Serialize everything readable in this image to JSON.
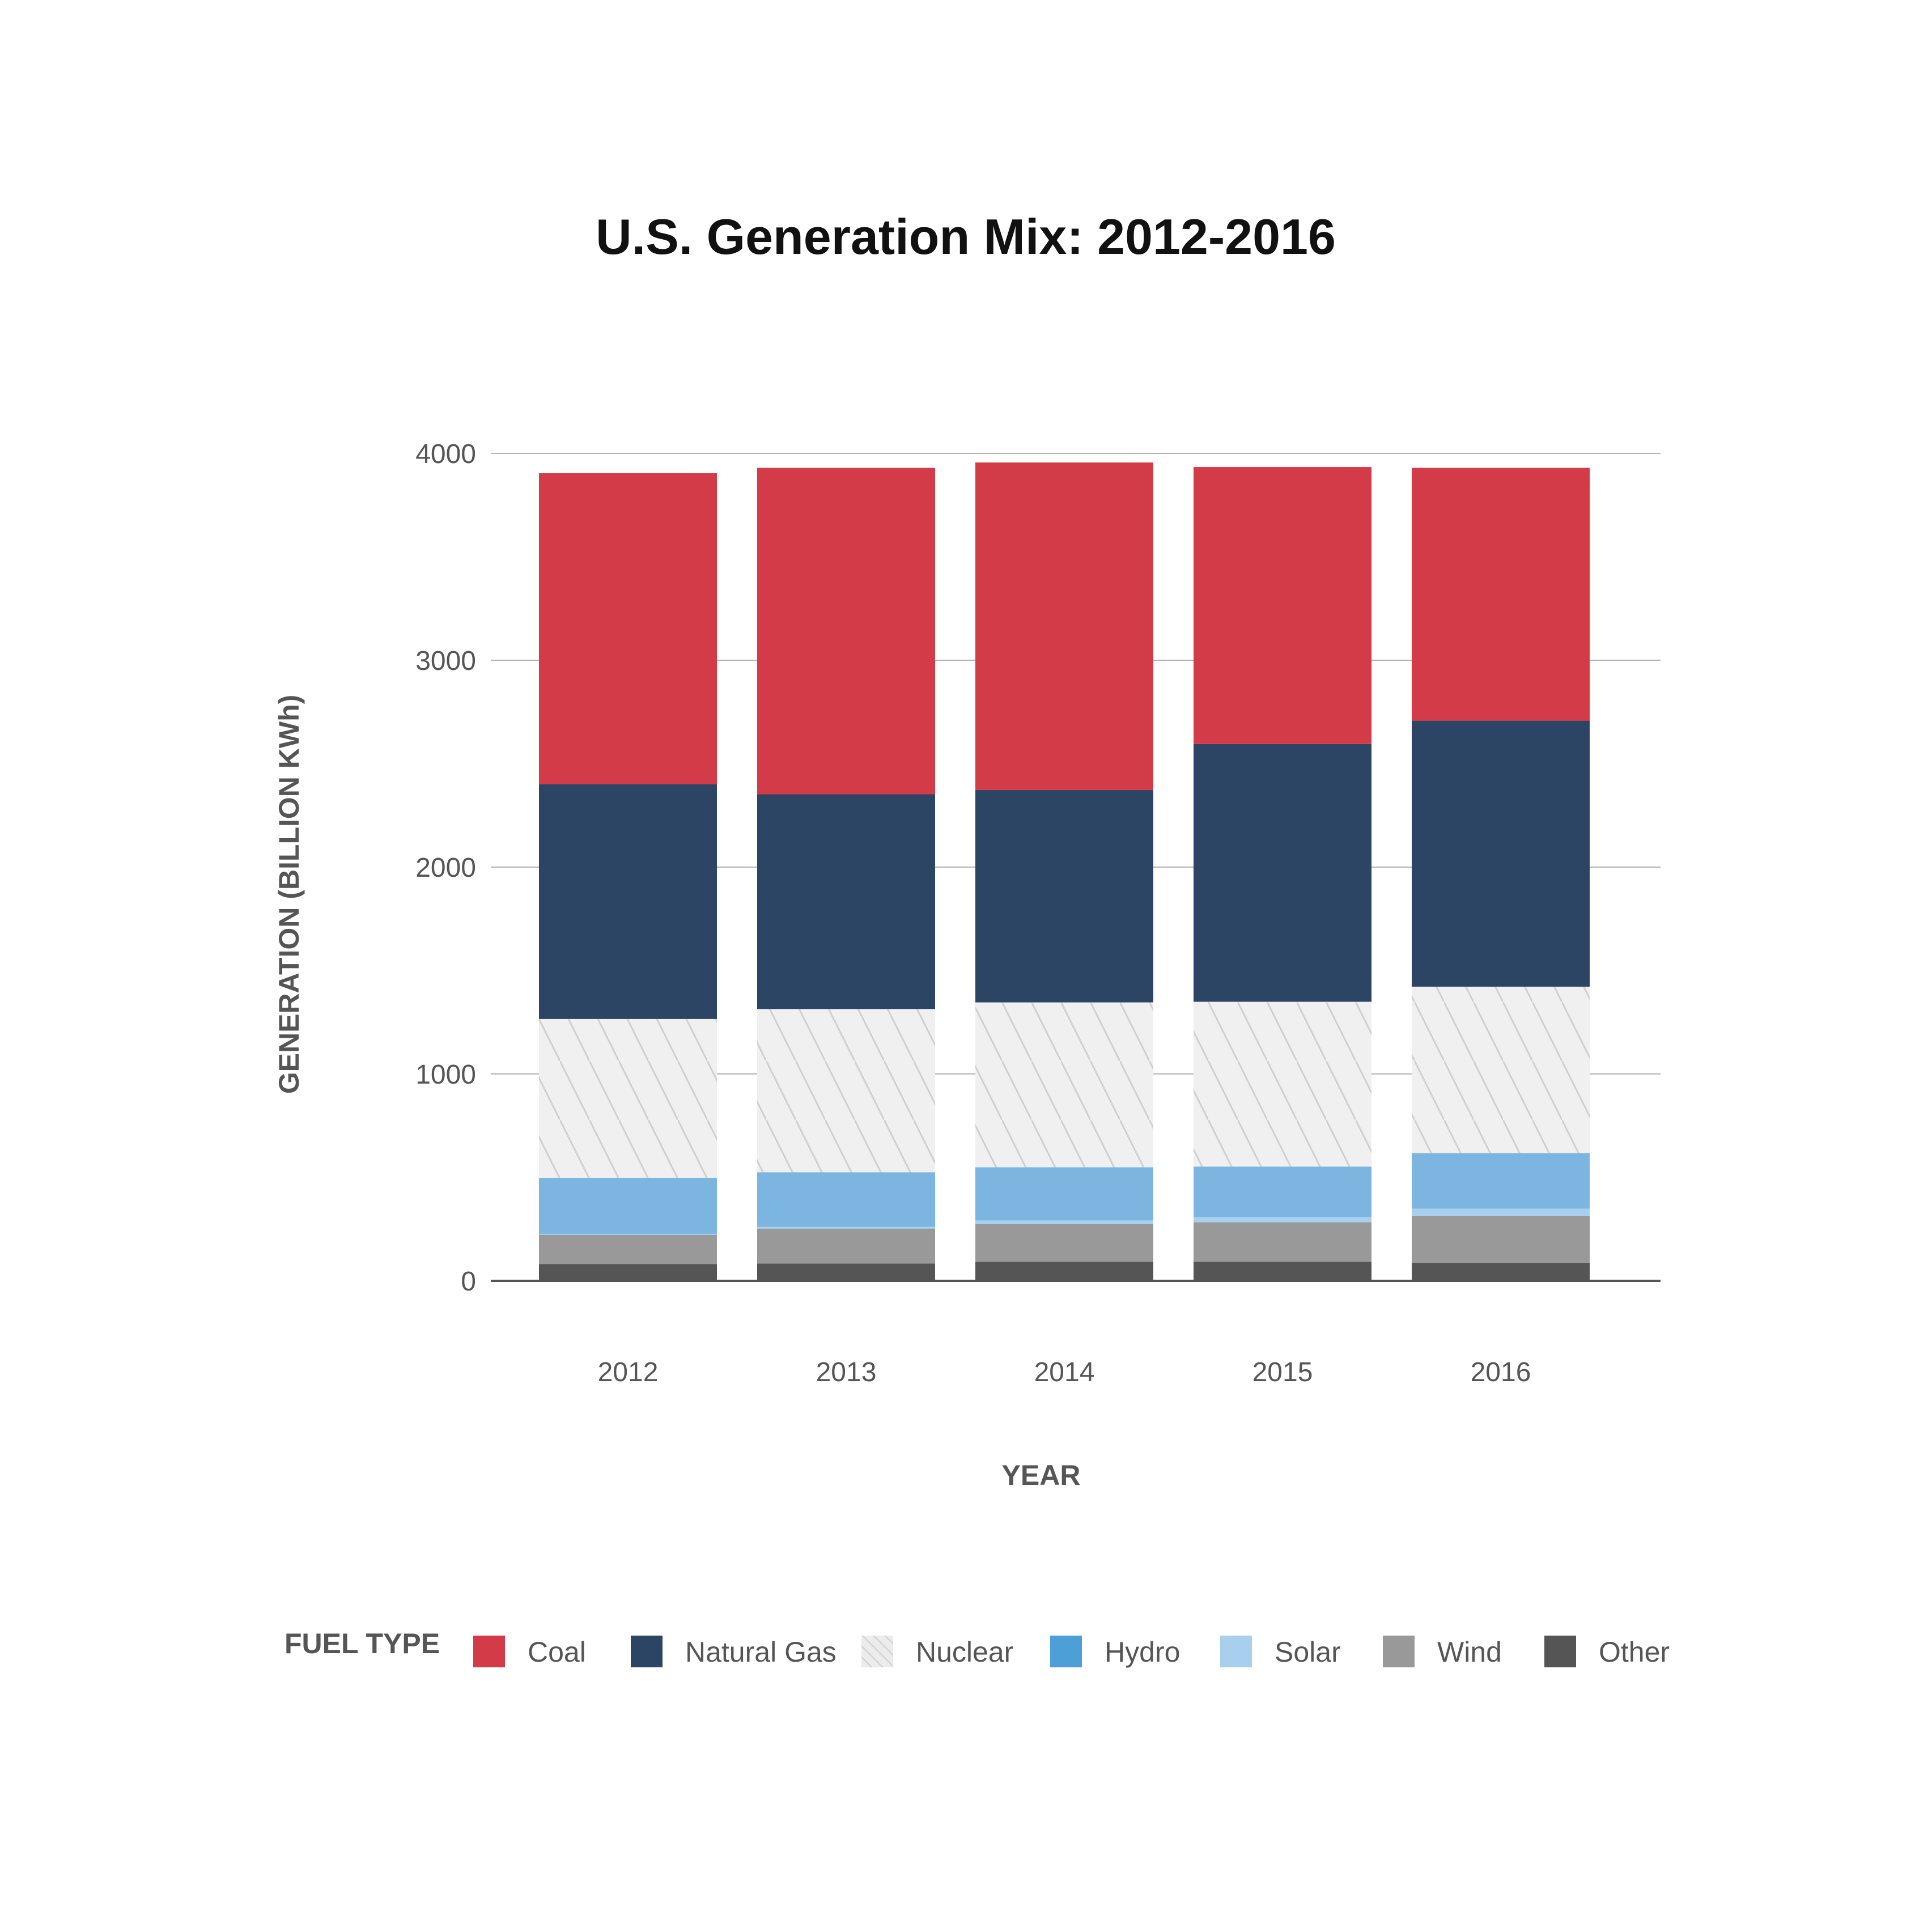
{
  "chart_data": {
    "type": "bar",
    "stacked": true,
    "title": "U.S. Generation Mix: 2012-2016",
    "xlabel": "YEAR",
    "ylabel": "GENERATION (BILLION KWh)",
    "ylim": [
      0,
      4000
    ],
    "yticks": [
      0,
      1000,
      2000,
      3000,
      4000
    ],
    "grid": true,
    "legend_title": "FUEL TYPE",
    "legend_position": "bottom",
    "categories": [
      "2012",
      "2013",
      "2014",
      "2015",
      "2016"
    ],
    "series": [
      {
        "name": "Other",
        "color": "#555555",
        "pattern": "solid",
        "values": [
          81,
          84,
          92,
          92,
          86
        ]
      },
      {
        "name": "Wind",
        "color": "#999999",
        "pattern": "solid",
        "values": [
          141,
          168,
          182,
          191,
          227
        ]
      },
      {
        "name": "Solar",
        "color": "#a9cfee",
        "pattern": "solid",
        "values": [
          4,
          9,
          18,
          25,
          36
        ]
      },
      {
        "name": "Hydro",
        "color": "#7bb5e0",
        "pattern": "solid",
        "values": [
          271,
          264,
          257,
          244,
          268
        ]
      },
      {
        "name": "Nuclear",
        "color": "#f0f0f0",
        "pattern": "hatch",
        "values": [
          769,
          789,
          797,
          797,
          805
        ]
      },
      {
        "name": "Natural Gas",
        "color": "#2d4565",
        "pattern": "solid",
        "values": [
          1135,
          1038,
          1027,
          1246,
          1286
        ]
      },
      {
        "name": "Coal",
        "color": "#d43b48",
        "pattern": "solid",
        "values": [
          1503,
          1578,
          1583,
          1339,
          1222
        ]
      }
    ],
    "legend_order": [
      "Coal",
      "Natural Gas",
      "Nuclear",
      "Hydro",
      "Solar",
      "Wind",
      "Other"
    ],
    "legend_colors": {
      "Coal": "#d43b48",
      "Natural Gas": "#2d4565",
      "Nuclear": "#e8e8e8",
      "Hydro": "#4d9fd8",
      "Solar": "#a9cfee",
      "Wind": "#999999",
      "Other": "#555555"
    }
  }
}
